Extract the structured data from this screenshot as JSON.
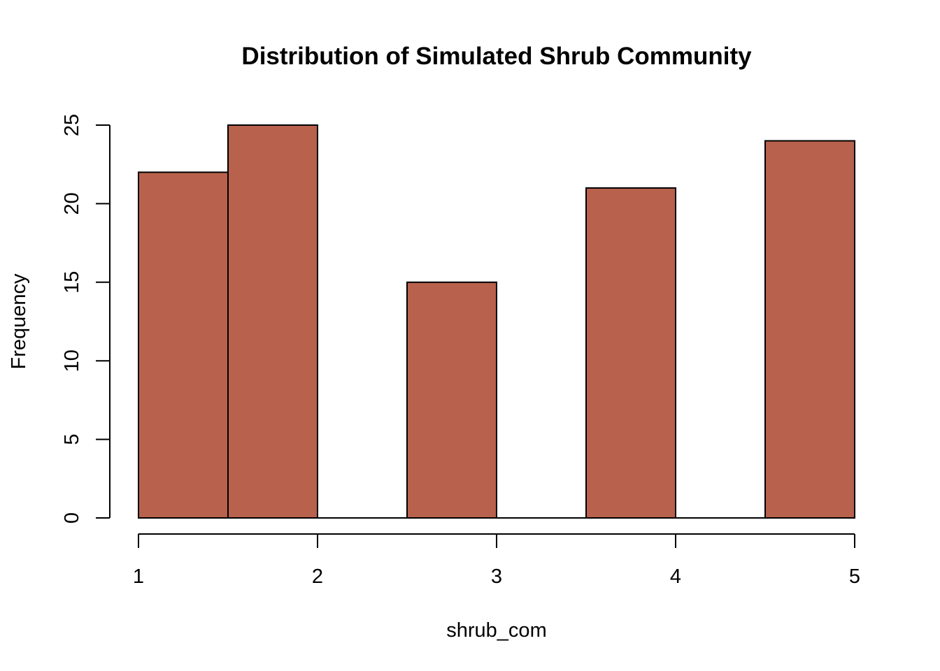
{
  "chart_data": {
    "type": "bar",
    "subtype": "histogram",
    "title": "Distribution of Simulated Shrub Community",
    "xlabel": "shrub_com",
    "ylabel": "Frequency",
    "bins": [
      {
        "x0": 1.0,
        "x1": 1.5,
        "count": 22
      },
      {
        "x0": 1.5,
        "x1": 2.0,
        "count": 25
      },
      {
        "x0": 2.0,
        "x1": 2.5,
        "count": 0
      },
      {
        "x0": 2.5,
        "x1": 3.0,
        "count": 15
      },
      {
        "x0": 3.0,
        "x1": 3.5,
        "count": 0
      },
      {
        "x0": 3.5,
        "x1": 4.0,
        "count": 21
      },
      {
        "x0": 4.0,
        "x1": 4.5,
        "count": 0
      },
      {
        "x0": 4.5,
        "x1": 5.0,
        "count": 24
      }
    ],
    "xlim": [
      1,
      5
    ],
    "ylim": [
      0,
      25
    ],
    "xticks": [
      1,
      2,
      3,
      4,
      5
    ],
    "yticks": [
      0,
      5,
      10,
      15,
      20,
      25
    ],
    "bar_color": "#b8614d",
    "grid": false,
    "legend": "none"
  }
}
